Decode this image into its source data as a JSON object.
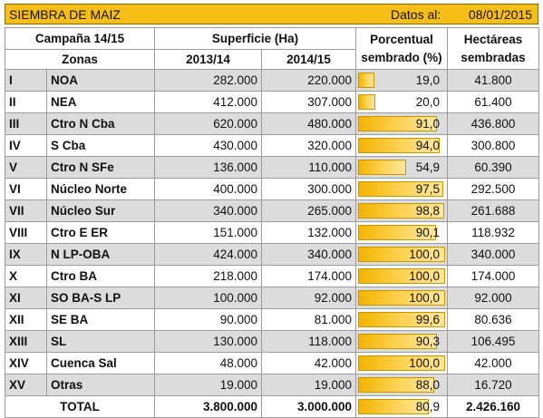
{
  "title": "SIEMBRA DE MAIZ",
  "date_label": "Datos al:",
  "date_value": "08/01/2015",
  "headers": {
    "campaign": "Campaña 14/15",
    "surface": "Superficie (Ha)",
    "percent_line1": "Porcentual",
    "percent_line2": "sembrado (%)",
    "hect_line1": "Hectáreas",
    "hect_line2": "sembradas",
    "zones": "Zonas",
    "year1": "2013/14",
    "year2": "2014/15"
  },
  "rows": [
    {
      "code": "I",
      "zone": "NOA",
      "y1": "282.000",
      "y2": "220.000",
      "pct": "19,0",
      "pct_value": 19.0,
      "hect": "41.800"
    },
    {
      "code": "II",
      "zone": "NEA",
      "y1": "412.000",
      "y2": "307.000",
      "pct": "20,0",
      "pct_value": 20.0,
      "hect": "61.400"
    },
    {
      "code": "III",
      "zone": "Ctro N Cba",
      "y1": "620.000",
      "y2": "480.000",
      "pct": "91,0",
      "pct_value": 91.0,
      "hect": "436.800"
    },
    {
      "code": "IV",
      "zone": "S Cba",
      "y1": "430.000",
      "y2": "320.000",
      "pct": "94,0",
      "pct_value": 94.0,
      "hect": "300.800"
    },
    {
      "code": "V",
      "zone": "Ctro N SFe",
      "y1": "136.000",
      "y2": "110.000",
      "pct": "54,9",
      "pct_value": 54.9,
      "hect": "60.390"
    },
    {
      "code": "VI",
      "zone": "Núcleo Norte",
      "y1": "400.000",
      "y2": "300.000",
      "pct": "97,5",
      "pct_value": 97.5,
      "hect": "292.500"
    },
    {
      "code": "VII",
      "zone": "Núcleo Sur",
      "y1": "340.000",
      "y2": "265.000",
      "pct": "98,8",
      "pct_value": 98.8,
      "hect": "261.688"
    },
    {
      "code": "VIII",
      "zone": "Ctro E ER",
      "y1": "151.000",
      "y2": "132.000",
      "pct": "90,1",
      "pct_value": 90.1,
      "hect": "118.932"
    },
    {
      "code": "IX",
      "zone": "N LP-OBA",
      "y1": "424.000",
      "y2": "340.000",
      "pct": "100,0",
      "pct_value": 100.0,
      "hect": "340.000"
    },
    {
      "code": "X",
      "zone": "Ctro BA",
      "y1": "218.000",
      "y2": "174.000",
      "pct": "100,0",
      "pct_value": 100.0,
      "hect": "174.000"
    },
    {
      "code": "XI",
      "zone": "SO BA-S LP",
      "y1": "100.000",
      "y2": "92.000",
      "pct": "100,0",
      "pct_value": 100.0,
      "hect": "92.000"
    },
    {
      "code": "XII",
      "zone": "SE BA",
      "y1": "90.000",
      "y2": "81.000",
      "pct": "99,6",
      "pct_value": 99.6,
      "hect": "80.636"
    },
    {
      "code": "XIII",
      "zone": "SL",
      "y1": "130.000",
      "y2": "118.000",
      "pct": "90,3",
      "pct_value": 90.3,
      "hect": "106.495"
    },
    {
      "code": "XIV",
      "zone": "Cuenca Sal",
      "y1": "48.000",
      "y2": "42.000",
      "pct": "100,0",
      "pct_value": 100.0,
      "hect": "42.000"
    },
    {
      "code": "XV",
      "zone": "Otras",
      "y1": "19.000",
      "y2": "19.000",
      "pct": "88,0",
      "pct_value": 88.0,
      "hect": "16.720"
    }
  ],
  "total": {
    "label": "TOTAL",
    "y1": "3.800.000",
    "y2": "3.000.000",
    "pct": "80,9",
    "pct_value": 80.9,
    "hect": "2.426.160"
  },
  "colors": {
    "title_bg": "#f6be17",
    "bar": "#f2b400",
    "row_shade": "#dcdcdc"
  }
}
